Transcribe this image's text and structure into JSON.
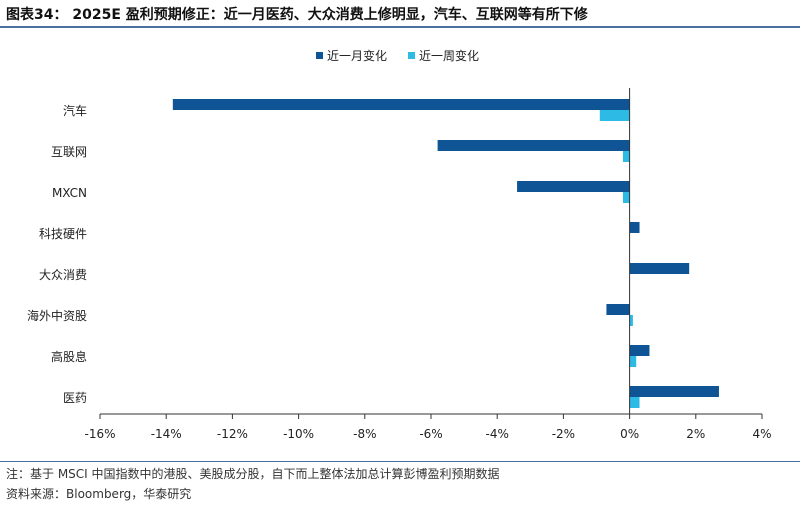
{
  "title": "图表34： 2025E 盈利预期修正：近一月医药、大众消费上修明显，汽车、互联网等有所下修",
  "note": "注：基于 MSCI 中国指数中的港股、美股成分股，自下而上整体法加总计算彭博盈利预期数据",
  "source": "资料来源：Bloomberg，华泰研究",
  "colors": {
    "series_month": "#0f5596",
    "series_week": "#2dbbe6",
    "rule": "#4a6fa0"
  },
  "chart_data": {
    "type": "bar",
    "orientation": "horizontal",
    "categories": [
      "汽车",
      "互联网",
      "MXCN",
      "科技硬件",
      "大众消费",
      "海外中资股",
      "高股息",
      "医药"
    ],
    "series": [
      {
        "name": "近一月变化",
        "values": [
          -13.8,
          -5.8,
          -3.4,
          0.3,
          1.8,
          -0.7,
          0.6,
          2.7
        ]
      },
      {
        "name": "近一周变化",
        "values": [
          -0.9,
          -0.2,
          -0.2,
          0.0,
          0.0,
          0.1,
          0.2,
          0.3
        ]
      }
    ],
    "xlim": [
      -16,
      4
    ],
    "xticks": [
      -16,
      -14,
      -12,
      -10,
      -8,
      -6,
      -4,
      -2,
      0,
      2,
      4
    ],
    "tick_format": "percent",
    "legend_position": "top-center",
    "grid": false
  }
}
